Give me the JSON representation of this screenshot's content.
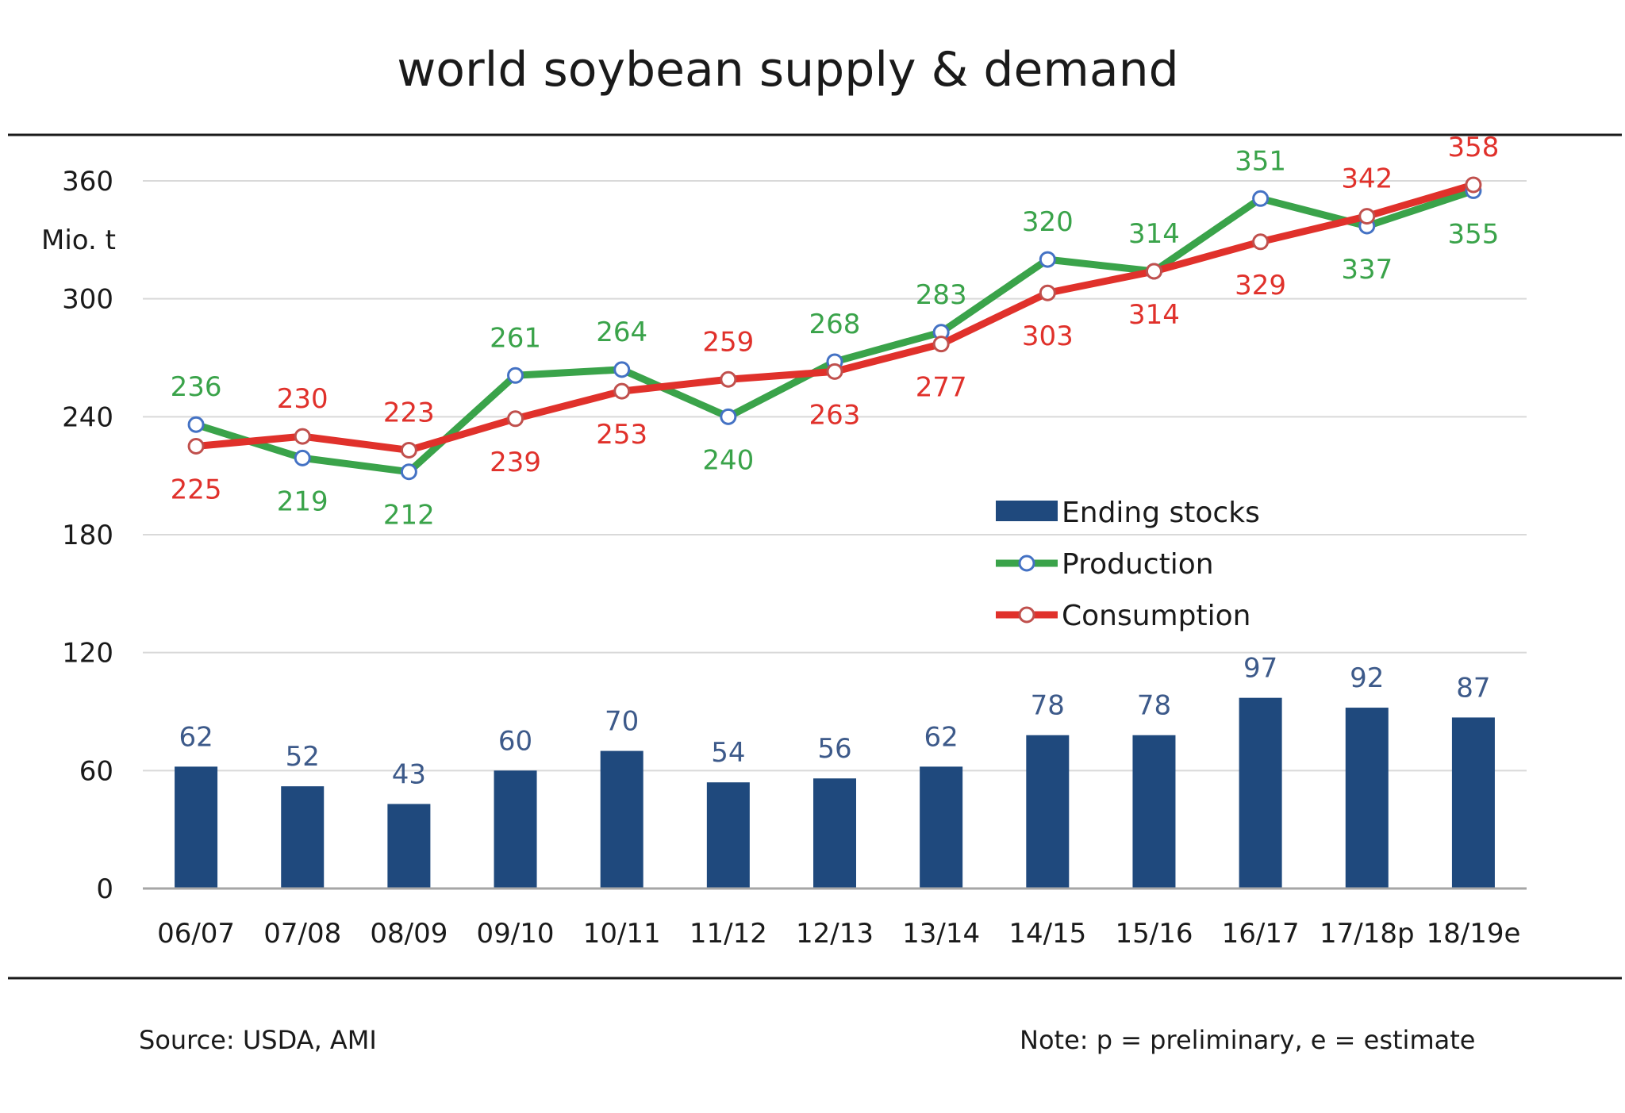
{
  "chart_data": {
    "type": "bar+line",
    "title": "world soybean supply & demand",
    "ylabel": "Mio. t",
    "ylim": [
      0,
      360
    ],
    "yticks": [
      "0",
      "60",
      "120",
      "180",
      "240",
      "300",
      "360"
    ],
    "categories": [
      "06/07",
      "07/08",
      "08/09",
      "09/10",
      "10/11",
      "11/12",
      "12/13",
      "13/14",
      "14/15",
      "15/16",
      "16/17",
      "17/18p",
      "18/19e"
    ],
    "series": [
      {
        "name": "Ending stocks",
        "kind": "bar",
        "color": "#1f497d",
        "values": [
          62,
          52,
          43,
          60,
          70,
          54,
          56,
          62,
          78,
          78,
          97,
          92,
          87
        ],
        "labels": [
          "62",
          "52",
          "43",
          "60",
          "70",
          "54",
          "56",
          "62",
          "78",
          "78",
          "97",
          "92",
          "87"
        ]
      },
      {
        "name": "Production",
        "kind": "line",
        "color": "#3aa34a",
        "marker_edge": "#4472c4",
        "values": [
          236,
          219,
          212,
          261,
          264,
          240,
          268,
          283,
          320,
          314,
          351,
          337,
          355
        ],
        "labels": [
          "236",
          "219",
          "212",
          "261",
          "264",
          "240",
          "268",
          "283",
          "320",
          "314",
          "351",
          "337",
          "355"
        ]
      },
      {
        "name": "Consumption",
        "kind": "line",
        "color": "#e0312b",
        "marker_edge": "#c0504d",
        "values": [
          225,
          230,
          223,
          239,
          253,
          259,
          263,
          277,
          303,
          314,
          329,
          342,
          358
        ],
        "labels": [
          "225",
          "230",
          "223",
          "239",
          "253",
          "259",
          "263",
          "277",
          "303",
          "314",
          "329",
          "342",
          "358"
        ]
      }
    ],
    "legend": [
      "Ending stocks",
      "Production",
      "Consumption"
    ],
    "legend_position": "right-middle",
    "grid": true
  },
  "footer": {
    "source": "Source: USDA, AMI",
    "note": "Note: p = preliminary, e = estimate"
  }
}
